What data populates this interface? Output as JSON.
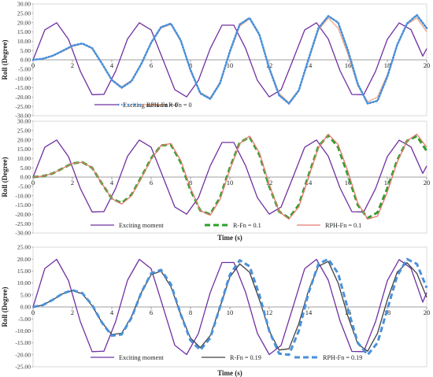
{
  "chart_data": [
    {
      "type": "line",
      "ylabel": "Roll (Degree)",
      "xlabel": "",
      "xlim": [
        0,
        20
      ],
      "ylim": [
        -30,
        30
      ],
      "xticks": [
        "0",
        "2",
        "4",
        "6",
        "8",
        "10",
        "12",
        "14",
        "16",
        "18",
        "20"
      ],
      "yticks": [
        "30.00",
        "25.00",
        "20.00",
        "15.00",
        "10.00",
        "5.00",
        "0.00",
        "-5.00",
        "-10.00",
        "-15.00",
        "-20.00",
        "-25.00",
        "-30.00"
      ],
      "legend_position": "bottom",
      "series": [
        {
          "name": "Exciting moment",
          "color": "#7030a0",
          "style": "solid",
          "x": [
            0,
            0.6,
            1.2,
            1.8,
            2.4,
            3.0,
            3.6,
            4.2,
            4.8,
            5.4,
            6.0,
            6.6,
            7.2,
            7.8,
            8.4,
            9.0,
            9.6,
            10.2,
            10.8,
            11.4,
            12.0,
            12.6,
            13.2,
            13.8,
            14.4,
            15.0,
            15.6,
            16.2,
            16.8,
            17.4,
            18.0,
            18.6,
            19.2,
            19.8,
            20.0
          ],
          "y": [
            0,
            16.1,
            19.9,
            11.0,
            -6.1,
            -18.7,
            -18.5,
            -6.0,
            11.2,
            19.9,
            16.0,
            0.1,
            -16.0,
            -19.9,
            -11.1,
            6.0,
            18.6,
            18.6,
            6.1,
            -11.1,
            -19.9,
            -16.1,
            -0.2,
            16.0,
            19.9,
            11.2,
            -5.9,
            -18.6,
            -18.7,
            -6.2,
            11.0,
            19.8,
            16.2,
            2.0,
            6.0
          ]
        },
        {
          "name": "R-Fn = 0",
          "color": "#f4a582",
          "style": "solid",
          "x": [
            0,
            0.5,
            1.0,
            1.5,
            2.0,
            2.5,
            3.0,
            3.5,
            4.0,
            4.5,
            5.0,
            5.5,
            6.0,
            6.5,
            7.0,
            7.5,
            8.0,
            8.5,
            9.0,
            9.5,
            10.0,
            10.5,
            11.0,
            11.5,
            12.0,
            12.5,
            13.0,
            13.5,
            14.0,
            14.5,
            15.0,
            15.5,
            16.0,
            16.5,
            17.0,
            17.5,
            18.0,
            18.5,
            19.0,
            19.5,
            20.0
          ],
          "y": [
            0,
            0.5,
            2.0,
            4.5,
            7.2,
            8.5,
            6.0,
            -2.0,
            -10.5,
            -14.5,
            -11.0,
            -2.0,
            9.0,
            17.0,
            19.0,
            10.0,
            -5.0,
            -17.5,
            -20.5,
            -12.0,
            4.0,
            18.0,
            22.0,
            13.0,
            -4.0,
            -18.0,
            -23.0,
            -16.0,
            0.0,
            16.0,
            22.5,
            17.0,
            3.0,
            -14.0,
            -22.5,
            -20.0,
            -8.0,
            8.0,
            19.0,
            22.5,
            15.0
          ]
        },
        {
          "name": "RPH-Fn = 0",
          "color": "#4a90d9",
          "style": "dotted",
          "x": [
            0,
            0.5,
            1.0,
            1.5,
            2.0,
            2.5,
            3.0,
            3.5,
            4.0,
            4.5,
            5.0,
            5.5,
            6.0,
            6.5,
            7.0,
            7.5,
            8.0,
            8.5,
            9.0,
            9.5,
            10.0,
            10.5,
            11.0,
            11.5,
            12.0,
            12.5,
            13.0,
            13.5,
            14.0,
            14.5,
            15.0,
            15.5,
            16.0,
            16.5,
            17.0,
            17.5,
            18.0,
            18.5,
            19.0,
            19.5,
            20.0
          ],
          "y": [
            0,
            0.6,
            2.2,
            4.8,
            7.6,
            8.8,
            6.3,
            -2.0,
            -10.8,
            -15.0,
            -11.5,
            -2.2,
            9.2,
            17.5,
            19.5,
            10.5,
            -5.5,
            -18.0,
            -21.0,
            -12.5,
            4.5,
            19.0,
            22.5,
            13.5,
            -4.5,
            -19.0,
            -23.5,
            -16.5,
            0.5,
            17.0,
            23.5,
            20.0,
            5.0,
            -13.0,
            -23.5,
            -22.0,
            -9.0,
            8.0,
            19.5,
            24.0,
            17.0
          ]
        }
      ],
      "legend": [
        "Exciting moment",
        "R-Fn = 0",
        "RPH-Fn = 0"
      ]
    },
    {
      "type": "line",
      "ylabel": "Roll (Degree)",
      "xlabel": "Time (s)",
      "xlim": [
        0,
        20
      ],
      "ylim": [
        -30,
        30
      ],
      "xticks": [
        "0",
        "2",
        "4",
        "6",
        "8",
        "10",
        "12",
        "14",
        "16",
        "18",
        "20"
      ],
      "yticks": [
        "30.00",
        "25.00",
        "20.00",
        "15.00",
        "10.00",
        "5.00",
        "0.00",
        "-5.00",
        "-10.00",
        "-15.00",
        "-20.00",
        "-25.00",
        "-30.00"
      ],
      "legend_position": "bottom",
      "series": [
        {
          "name": "Exciting moment",
          "color": "#7030a0",
          "style": "solid",
          "x": [
            0,
            0.6,
            1.2,
            1.8,
            2.4,
            3.0,
            3.6,
            4.2,
            4.8,
            5.4,
            6.0,
            6.6,
            7.2,
            7.8,
            8.4,
            9.0,
            9.6,
            10.2,
            10.8,
            11.4,
            12.0,
            12.6,
            13.2,
            13.8,
            14.4,
            15.0,
            15.6,
            16.2,
            16.8,
            17.4,
            18.0,
            18.6,
            19.2,
            19.8,
            20.0
          ],
          "y": [
            0,
            16.1,
            19.9,
            11.0,
            -6.1,
            -18.7,
            -18.5,
            -6.0,
            11.2,
            19.9,
            16.0,
            0.1,
            -16.0,
            -19.9,
            -11.1,
            6.0,
            18.6,
            18.6,
            6.1,
            -11.1,
            -19.9,
            -16.1,
            -0.2,
            16.0,
            19.9,
            11.2,
            -5.9,
            -18.6,
            -18.7,
            -6.2,
            11.0,
            19.8,
            16.2,
            2.0,
            6.0
          ]
        },
        {
          "name": "R-Fn = 0.1",
          "color": "#2ca02c",
          "style": "dashed",
          "x": [
            0,
            0.5,
            1.0,
            1.5,
            2.0,
            2.5,
            3.0,
            3.5,
            4.0,
            4.5,
            5.0,
            5.5,
            6.0,
            6.5,
            7.0,
            7.5,
            8.0,
            8.5,
            9.0,
            9.5,
            10.0,
            10.5,
            11.0,
            11.5,
            12.0,
            12.5,
            13.0,
            13.5,
            14.0,
            14.5,
            15.0,
            15.5,
            16.0,
            16.5,
            17.0,
            17.5,
            18.0,
            18.5,
            19.0,
            19.5,
            20.0
          ],
          "y": [
            0,
            0.5,
            2.0,
            4.7,
            7.4,
            8.0,
            5.0,
            -3.5,
            -11.5,
            -14.0,
            -9.5,
            0.0,
            10.0,
            17.0,
            17.5,
            8.0,
            -7.0,
            -18.0,
            -20.0,
            -11.0,
            5.0,
            18.5,
            21.5,
            12.0,
            -5.0,
            -18.5,
            -22.0,
            -15.0,
            1.0,
            16.5,
            22.5,
            16.0,
            1.0,
            -15.0,
            -22.0,
            -19.0,
            -6.0,
            9.0,
            19.5,
            22.0,
            14.0
          ]
        },
        {
          "name": "RPH-Fn = 0.1",
          "color": "#e8786e",
          "style": "solid",
          "x": [
            0,
            0.5,
            1.0,
            1.5,
            2.0,
            2.5,
            3.0,
            3.5,
            4.0,
            4.5,
            5.0,
            5.5,
            6.0,
            6.5,
            7.0,
            7.5,
            8.0,
            8.5,
            9.0,
            9.5,
            10.0,
            10.5,
            11.0,
            11.5,
            12.0,
            12.5,
            13.0,
            13.5,
            14.0,
            14.5,
            15.0,
            15.5,
            16.0,
            16.5,
            17.0,
            17.5,
            18.0,
            18.5,
            19.0,
            19.5,
            20.0
          ],
          "y": [
            0,
            0.5,
            2.0,
            4.7,
            7.4,
            8.0,
            5.0,
            -3.5,
            -11.5,
            -14.5,
            -10.0,
            -0.5,
            9.5,
            17.0,
            18.0,
            9.0,
            -6.0,
            -18.0,
            -20.5,
            -12.0,
            4.0,
            18.0,
            22.0,
            13.0,
            -4.0,
            -18.5,
            -22.5,
            -16.0,
            0.0,
            16.0,
            23.0,
            17.5,
            3.0,
            -14.0,
            -22.5,
            -21.0,
            -8.0,
            8.0,
            19.5,
            23.0,
            16.0
          ]
        }
      ],
      "legend": [
        "Exciting moment",
        "R-Fn = 0.1",
        "RPH-Fn = 0.1"
      ]
    },
    {
      "type": "line",
      "ylabel": "Roll (Degree)",
      "xlabel": "Time (s)",
      "xlim": [
        0,
        20
      ],
      "ylim": [
        -25,
        25
      ],
      "xticks": [
        "0",
        "2",
        "4",
        "6",
        "8",
        "10",
        "12",
        "14",
        "16",
        "18",
        "20"
      ],
      "yticks": [
        "25.00",
        "20.00",
        "15.00",
        "10.00",
        "5.00",
        "0.00",
        "-5.00",
        "-10.00",
        "-15.00",
        "-20.00",
        "-25.00"
      ],
      "legend_position": "bottom",
      "series": [
        {
          "name": "Exciting moment",
          "color": "#7030a0",
          "style": "solid",
          "x": [
            0,
            0.6,
            1.2,
            1.8,
            2.4,
            3.0,
            3.6,
            4.2,
            4.8,
            5.4,
            6.0,
            6.6,
            7.2,
            7.8,
            8.4,
            9.0,
            9.6,
            10.2,
            10.8,
            11.4,
            12.0,
            12.6,
            13.2,
            13.8,
            14.4,
            15.0,
            15.6,
            16.2,
            16.8,
            17.4,
            18.0,
            18.6,
            19.2,
            19.8,
            20.0
          ],
          "y": [
            0,
            16.1,
            19.9,
            11.0,
            -6.1,
            -18.7,
            -18.5,
            -6.0,
            11.2,
            19.9,
            16.0,
            0.1,
            -16.0,
            -19.9,
            -11.1,
            6.0,
            18.6,
            18.6,
            6.1,
            -11.1,
            -19.9,
            -16.1,
            -0.2,
            16.0,
            19.9,
            11.2,
            -5.9,
            -18.6,
            -18.7,
            -6.2,
            11.0,
            19.8,
            16.2,
            2.0,
            6.0
          ]
        },
        {
          "name": "R-Fn = 0.19",
          "color": "#404040",
          "style": "solid",
          "x": [
            0,
            0.5,
            1.0,
            1.5,
            2.0,
            2.5,
            3.0,
            3.5,
            4.0,
            4.5,
            5.0,
            5.5,
            6.0,
            6.5,
            7.0,
            7.5,
            8.0,
            8.5,
            9.0,
            9.5,
            10.0,
            10.5,
            11.0,
            11.5,
            12.0,
            12.5,
            13.0,
            13.5,
            14.0,
            14.5,
            15.0,
            15.5,
            16.0,
            16.5,
            17.0,
            17.5,
            18.0,
            18.5,
            19.0,
            19.5,
            20.0
          ],
          "y": [
            0,
            0.8,
            3.0,
            5.5,
            6.8,
            5.5,
            0.5,
            -6.5,
            -11.5,
            -11.0,
            -4.0,
            6.0,
            13.5,
            15.0,
            8.5,
            -3.0,
            -13.0,
            -17.0,
            -12.0,
            0.0,
            12.5,
            18.0,
            14.5,
            3.0,
            -10.0,
            -18.0,
            -17.5,
            -7.0,
            7.0,
            17.0,
            19.0,
            10.0,
            -4.0,
            -15.5,
            -18.5,
            -11.0,
            3.0,
            14.5,
            18.5,
            14.0,
            4.0
          ]
        },
        {
          "name": "RPH-Fn = 0.19",
          "color": "#4a90d9",
          "style": "dashed",
          "x": [
            0,
            0.5,
            1.0,
            1.5,
            2.0,
            2.5,
            3.0,
            3.5,
            4.0,
            4.5,
            5.0,
            5.5,
            6.0,
            6.5,
            7.0,
            7.5,
            8.0,
            8.5,
            9.0,
            9.5,
            10.0,
            10.5,
            11.0,
            11.5,
            12.0,
            12.5,
            13.0,
            13.5,
            14.0,
            14.5,
            15.0,
            15.5,
            16.0,
            16.5,
            17.0,
            17.5,
            18.0,
            18.5,
            19.0,
            19.5,
            20.0
          ],
          "y": [
            0,
            0.8,
            3.0,
            5.6,
            7.0,
            5.8,
            0.8,
            -6.5,
            -12.0,
            -11.5,
            -4.5,
            6.0,
            14.0,
            15.5,
            9.5,
            -3.0,
            -14.0,
            -18.0,
            -13.0,
            0.0,
            13.5,
            19.5,
            17.0,
            5.0,
            -10.0,
            -19.5,
            -20.0,
            -10.0,
            6.0,
            18.0,
            20.0,
            14.0,
            -1.0,
            -15.0,
            -20.0,
            -15.0,
            -1.0,
            13.0,
            20.0,
            18.0,
            8.0
          ]
        }
      ],
      "legend": [
        "Exciting moment",
        "R-Fn = 0.19",
        "RPH-Fn = 0.19"
      ]
    }
  ]
}
